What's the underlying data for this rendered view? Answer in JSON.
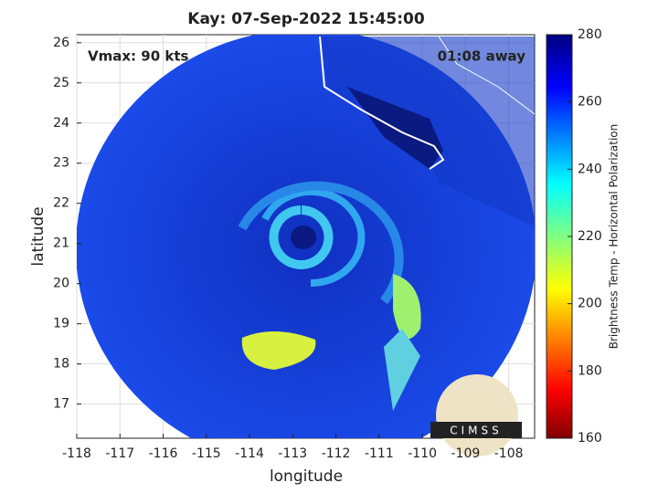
{
  "chart_data": {
    "type": "map",
    "title": "Kay: 07-Sep-2022 15:45:00",
    "xlabel": "longitude",
    "ylabel": "latitude",
    "xlim": [
      -118,
      -107.4
    ],
    "ylim": [
      16.15,
      26.2
    ],
    "xticks": [
      -118,
      -117,
      -116,
      -115,
      -114,
      -113,
      -112,
      -111,
      -110,
      -109,
      -108
    ],
    "yticks": [
      17,
      18,
      19,
      20,
      21,
      22,
      23,
      24,
      25,
      26
    ],
    "grid": true,
    "annotations": [
      "Vmax: 90 kts",
      "01:08 away"
    ],
    "colorbar": {
      "label": "Brightness Temp - Horizontal Polarization",
      "lim": [
        160,
        280
      ],
      "ticks": [
        160,
        180,
        200,
        220,
        240,
        260,
        280
      ]
    },
    "logo": "CIMSS"
  }
}
